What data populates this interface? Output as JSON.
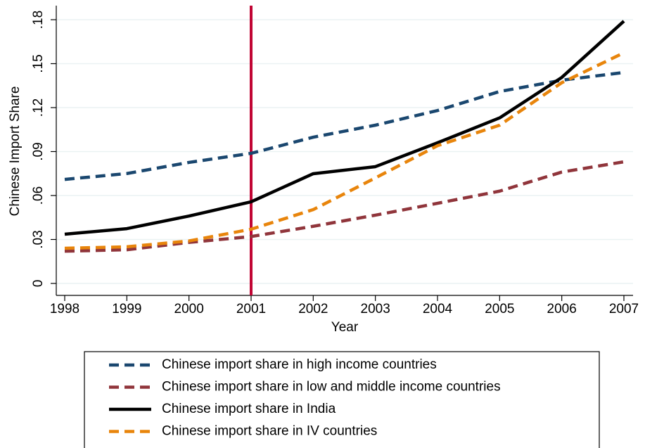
{
  "chart_data": {
    "type": "line",
    "x_label": "Year",
    "y_label": "Chinese Import Share",
    "x": [
      1998,
      1999,
      2000,
      2001,
      2002,
      2003,
      2004,
      2005,
      2006,
      2007
    ],
    "xlim": [
      1998,
      2007
    ],
    "xticks": [
      1998,
      1999,
      2000,
      2001,
      2002,
      2003,
      2004,
      2005,
      2006,
      2007
    ],
    "ylim": [
      0,
      0.18
    ],
    "yticks": [
      0,
      {
        "value": 0.03,
        "label": ".03"
      },
      {
        "value": 0.06,
        "label": ".06"
      },
      {
        "value": 0.09,
        "label": ".09"
      },
      {
        "value": 0.12,
        "label": ".12"
      },
      {
        "value": 0.15,
        "label": ".15"
      },
      {
        "value": 0.18,
        "label": ".18"
      }
    ],
    "grid": true,
    "legend": "bottom",
    "vline": {
      "x": 2001,
      "color": "#c10534"
    },
    "series": [
      {
        "name": "Chinese import share in high income countries",
        "color": "#1a476f",
        "dash": true,
        "values": [
          0.071,
          0.075,
          0.0826,
          0.0888,
          0.0998,
          0.108,
          0.118,
          0.131,
          0.1387,
          0.144
        ]
      },
      {
        "name": "Chinese import share in low and middle income countries",
        "color": "#90353b",
        "dash": true,
        "values": [
          0.022,
          0.023,
          0.028,
          0.032,
          0.039,
          0.0466,
          0.0547,
          0.063,
          0.076,
          0.083
        ]
      },
      {
        "name": "Chinese import share in India",
        "color": "#000000",
        "dash": false,
        "values": [
          0.0336,
          0.0374,
          0.046,
          0.0557,
          0.0749,
          0.0797,
          0.096,
          0.113,
          0.1406,
          0.179
        ]
      },
      {
        "name": "Chinese import share in IV countries",
        "color": "#e8850c",
        "dash": true,
        "values": [
          0.024,
          0.025,
          0.029,
          0.037,
          0.0504,
          0.072,
          0.094,
          0.108,
          0.137,
          0.1574
        ]
      }
    ]
  }
}
